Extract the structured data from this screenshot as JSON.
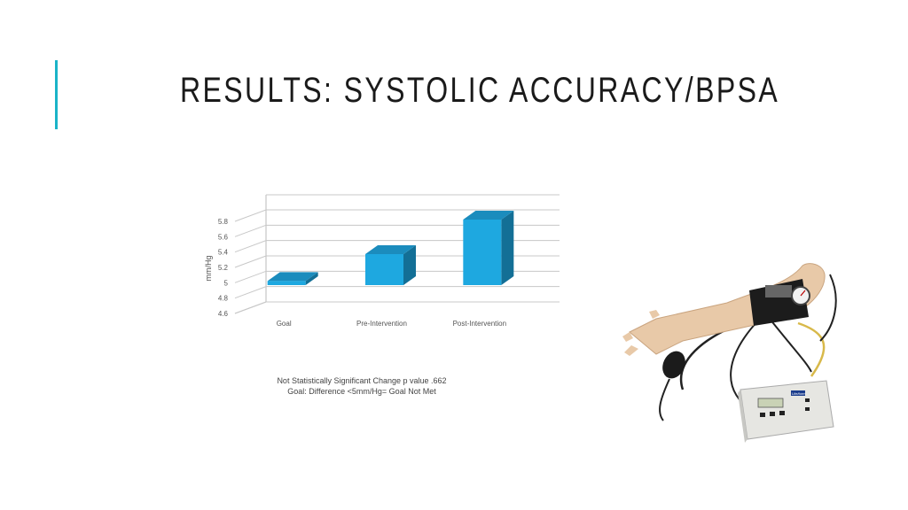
{
  "slide": {
    "title": "RESULTS: SYSTOLIC ACCURACY/BPSA",
    "accent_color": "#1ab3c8"
  },
  "chart_data": {
    "type": "bar",
    "style": "3d",
    "categories": [
      "Goal",
      "Pre-Intervention",
      "Post-Intervention"
    ],
    "values": [
      5.0,
      5.35,
      5.8
    ],
    "ylabel": "mm/Hg",
    "xlabel": "",
    "ylim": [
      4.6,
      5.8
    ],
    "yticks": [
      4.6,
      4.8,
      5,
      5.2,
      5.4,
      5.6,
      5.8
    ],
    "ytick_labels": [
      "4.6",
      "4.8",
      "5",
      "5.2",
      "5.4",
      "5.6",
      "5.8"
    ],
    "grid": true,
    "legend": "none",
    "bar_color": "#1ea8e0"
  },
  "notes": {
    "line1": "Not Statistically Significant Change p value .662",
    "line2": "Goal: Difference <5mm/Hg= Goal Not Met"
  },
  "image": {
    "icon": "bp-simulator-arm-icon",
    "device_brand": "Life/form"
  }
}
